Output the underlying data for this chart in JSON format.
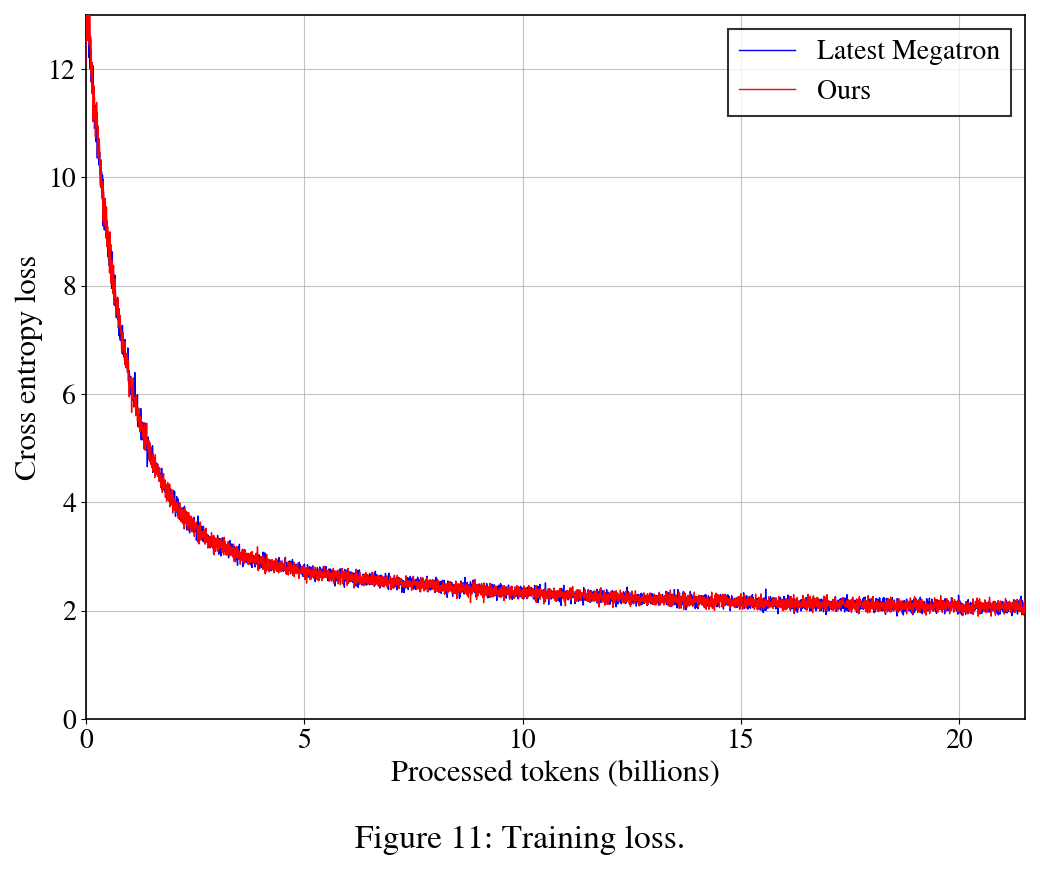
{
  "title": "Figure 11: Training loss.",
  "xlabel": "Processed tokens (billions)",
  "ylabel": "Cross entropy loss",
  "legend_labels": [
    "Latest Megatron",
    "Ours"
  ],
  "legend_colors": [
    "#0000ff",
    "#ff0000"
  ],
  "xlim": [
    0,
    21.5
  ],
  "ylim": [
    0,
    13
  ],
  "yticks": [
    0,
    2,
    4,
    6,
    8,
    10,
    12
  ],
  "xticks": [
    0,
    5,
    10,
    15,
    20
  ],
  "n_points": 4000,
  "background_color": "#ffffff",
  "grid_color": "#aaaaaa",
  "line_width": 1.0,
  "title_fontsize": 24,
  "label_fontsize": 22,
  "tick_fontsize": 20,
  "legend_fontsize": 20
}
